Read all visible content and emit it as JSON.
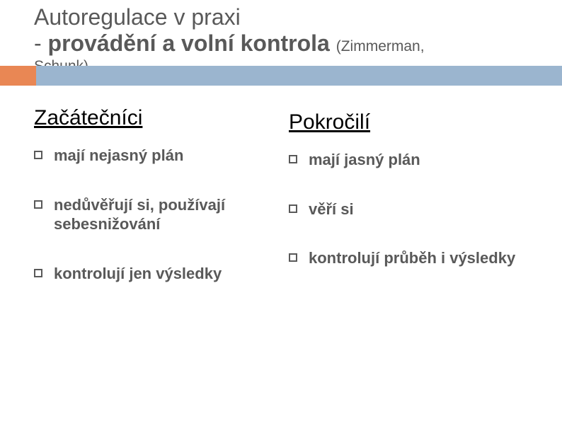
{
  "title": {
    "line1": "Autoregulace v praxi",
    "line2_prefix": "- ",
    "line2_bold": "provádění a volní kontrola ",
    "line2_cite": "(Zimmerman,",
    "line3": "Schunk)"
  },
  "columns": {
    "left": {
      "heading": "Začátečníci",
      "items": [
        "mají nejasný plán",
        "nedůvěřují si, používají sebesnižování",
        "kontrolují jen výsledky"
      ]
    },
    "right": {
      "heading": "Pokročilí",
      "items": [
        "mají jasný plán",
        "věří si",
        "kontrolují průběh i výsledky"
      ]
    }
  },
  "style": {
    "accent_orange": "#e98754",
    "accent_blue": "#9bb5cf",
    "text_color": "#595959",
    "heading_color": "#000000",
    "background": "#ffffff",
    "title_fontsize": 32,
    "cite_fontsize": 21,
    "col_heading_fontsize": 30,
    "item_fontsize": 22
  }
}
